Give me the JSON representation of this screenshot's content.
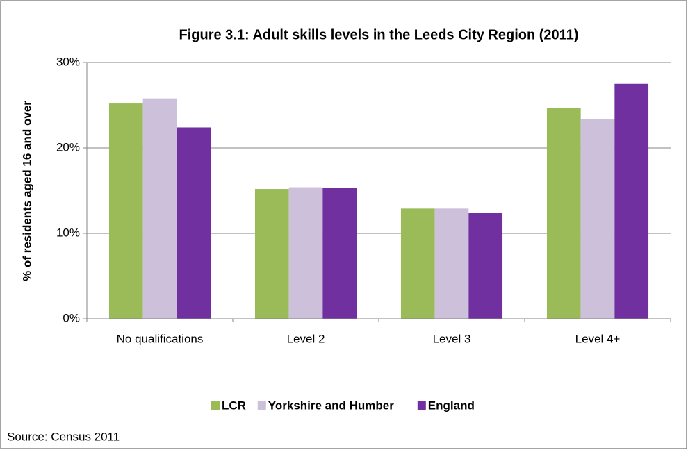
{
  "chart_data": {
    "type": "bar",
    "title": "Figure 3.1: Adult skills levels in the Leeds City Region (2011)",
    "y_label": "% of residents aged 16 and over",
    "source": "Source: Census 2011",
    "categories": [
      "No qualifications",
      "Level 2",
      "Level 3",
      "Level 4+"
    ],
    "series": [
      {
        "name": "LCR",
        "color": "#9bbb59",
        "values": [
          25.2,
          15.2,
          12.9,
          24.7
        ]
      },
      {
        "name": "Yorkshire and Humber",
        "color": "#ccc0da",
        "values": [
          25.8,
          15.4,
          12.9,
          23.4
        ]
      },
      {
        "name": "England",
        "color": "#7030a0",
        "values": [
          22.4,
          15.3,
          12.4,
          27.5
        ]
      }
    ],
    "ylim": [
      0,
      30
    ],
    "yticks": [
      {
        "value": 0,
        "label": "0%"
      },
      {
        "value": 10,
        "label": "10%"
      },
      {
        "value": 20,
        "label": "20%"
      },
      {
        "value": 30,
        "label": "30%"
      }
    ],
    "grid": true,
    "legend": "bottom"
  }
}
